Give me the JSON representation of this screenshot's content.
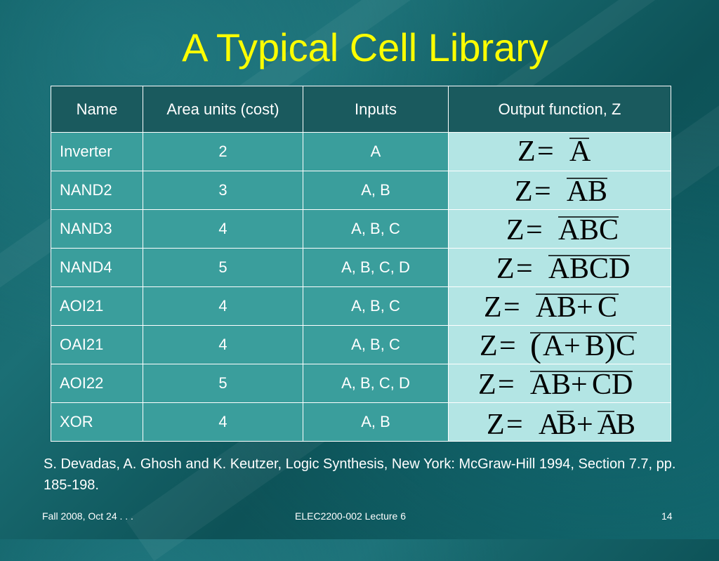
{
  "slide": {
    "title": "A Typical Cell Library",
    "citation": "S. Devadas, A. Ghosh and K. Keutzer, Logic Synthesis, New York: McGraw-Hill 1994, Section 7.7,  pp. 185-198.",
    "footer_left": "Fall 2008, Oct 24 . . .",
    "footer_center": "ELEC2200-002 Lecture 6",
    "page_number": "14"
  },
  "table": {
    "headers": [
      "Name",
      "Area units (cost)",
      "Inputs",
      "Output function, Z"
    ],
    "rows": [
      {
        "name": "Inverter",
        "area": "2",
        "inputs": "A",
        "function": "Z = A'"
      },
      {
        "name": "NAND2",
        "area": "3",
        "inputs": "A, B",
        "function": "Z = (AB)'"
      },
      {
        "name": "NAND3",
        "area": "4",
        "inputs": "A, B, C",
        "function": "Z = (ABC)'"
      },
      {
        "name": "NAND4",
        "area": "5",
        "inputs": "A, B, C, D",
        "function": "Z = (ABCD)'"
      },
      {
        "name": "AOI21",
        "area": "4",
        "inputs": "A, B, C",
        "function": "Z = (AB+C)'"
      },
      {
        "name": "OAI21",
        "area": "4",
        "inputs": "A, B, C",
        "function": "Z = ((A+B)C)'"
      },
      {
        "name": "AOI22",
        "area": "5",
        "inputs": "A, B, C, D",
        "function": "Z = (AB+CD)'"
      },
      {
        "name": "XOR",
        "area": "4",
        "inputs": "A, B",
        "function": "Z = AB' + A'B"
      }
    ]
  },
  "colors": {
    "title": "#ffff00",
    "header_bg": "#1a5a5e",
    "cell_bg": "#3a9e9c",
    "function_bg": "#b3e5e4"
  }
}
